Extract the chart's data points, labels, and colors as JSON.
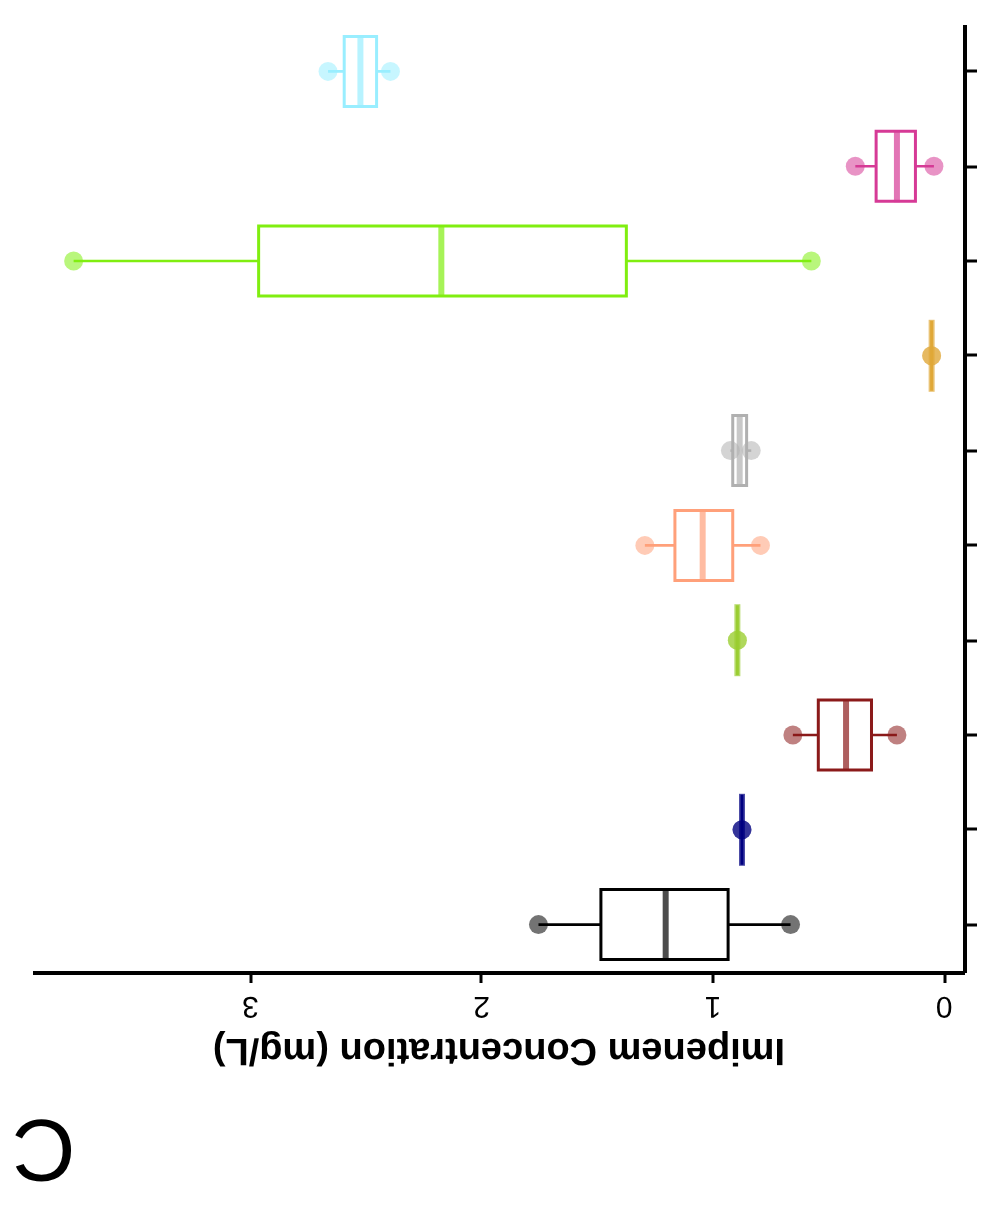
{
  "chart_data": {
    "type": "box",
    "orientation": "horizontal",
    "xlabel": "Imipenem Concentration (mg/L)",
    "annotations": [
      "C"
    ],
    "categories": [
      null,
      null,
      null,
      null,
      null,
      null,
      null,
      null,
      null,
      null
    ],
    "colors": [
      "#99eeff",
      "#d63a96",
      "#80ee10",
      "#e0a838",
      "#b0b0b0",
      "#ffa07a",
      "#9acd32",
      "#8b1a1a",
      "#000080",
      "#000000"
    ],
    "boxes": [
      {
        "low": 2.39,
        "q1": 2.45,
        "median": 2.52,
        "q3": 2.59,
        "high": 2.66,
        "outliers": [
          2.39,
          2.66
        ]
      },
      {
        "low": 0.04,
        "q1": 0.12,
        "median": 0.2,
        "q3": 0.29,
        "high": 0.38,
        "outliers": [
          0.04,
          0.38
        ]
      },
      {
        "low": 0.57,
        "q1": 1.37,
        "median": 2.17,
        "q3": 2.96,
        "high": 3.76,
        "outliers": [
          0.57,
          3.76
        ]
      },
      {
        "low": 0.05,
        "q1": 0.05,
        "median": 0.05,
        "q3": 0.05,
        "high": 0.05,
        "outliers": [
          0.05,
          0.05
        ]
      },
      {
        "low": 0.83,
        "q1": 0.85,
        "median": 0.88,
        "q3": 0.91,
        "high": 0.92,
        "outliers": [
          0.83,
          0.92
        ]
      },
      {
        "low": 0.79,
        "q1": 0.91,
        "median": 1.04,
        "q3": 1.16,
        "high": 1.29,
        "outliers": [
          0.79,
          1.29
        ]
      },
      {
        "low": 0.89,
        "q1": 0.89,
        "median": 0.89,
        "q3": 0.89,
        "high": 0.89,
        "outliers": [
          0.89,
          0.89
        ]
      },
      {
        "low": 0.2,
        "q1": 0.31,
        "median": 0.42,
        "q3": 0.54,
        "high": 0.65,
        "outliers": [
          0.2,
          0.65
        ]
      },
      {
        "low": 0.87,
        "q1": 0.87,
        "median": 0.87,
        "q3": 0.87,
        "high": 0.87,
        "outliers": [
          0.87,
          0.87
        ]
      },
      {
        "low": 0.66,
        "q1": 0.93,
        "median": 1.2,
        "q3": 1.48,
        "high": 1.75,
        "outliers": [
          0.66,
          1.75
        ]
      }
    ],
    "xlim": [
      3.94,
      -0.09
    ],
    "xticks": [
      0,
      1,
      2,
      3
    ],
    "tick_labels": "x"
  }
}
